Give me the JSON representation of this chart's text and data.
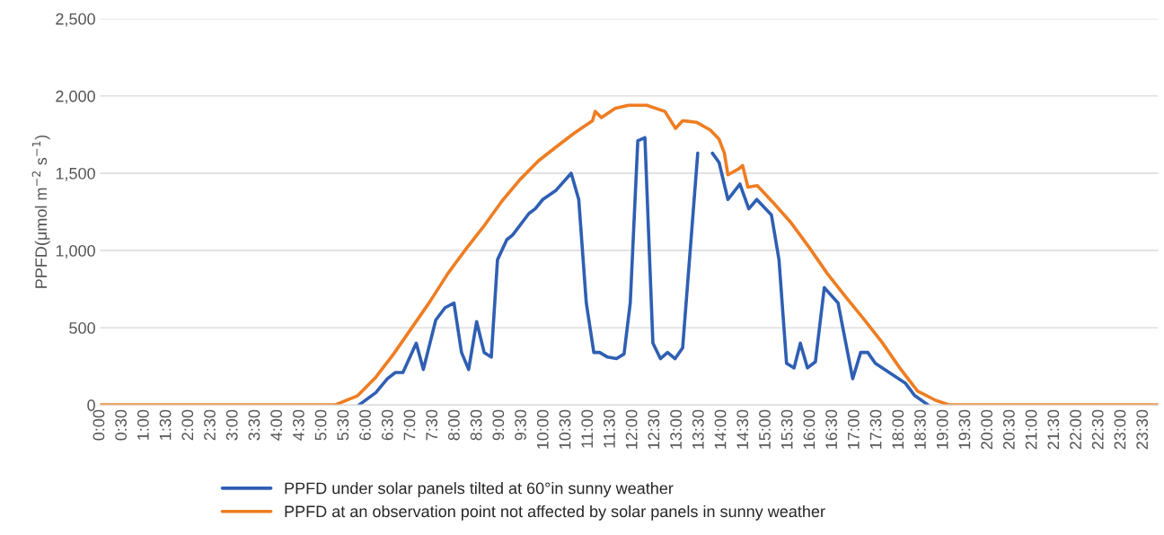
{
  "chart_data": {
    "type": "line",
    "ylabel": "PPFD(μmol m$^{−2}$ s$^{−1}$)",
    "xlim": [
      0,
      23.83
    ],
    "ylim": [
      0,
      2500
    ],
    "yticks": [
      {
        "value": 0,
        "label": "0"
      },
      {
        "value": 500,
        "label": "500"
      },
      {
        "value": 1000,
        "label": "1,000"
      },
      {
        "value": 1500,
        "label": "1,500"
      },
      {
        "value": 2000,
        "label": "2,000"
      },
      {
        "value": 2500,
        "label": "2,500"
      }
    ],
    "xticks": [
      {
        "value": 0,
        "label": "0:00"
      },
      {
        "value": 0.5,
        "label": "0:30"
      },
      {
        "value": 1,
        "label": "1:00"
      },
      {
        "value": 1.5,
        "label": "1:30"
      },
      {
        "value": 2,
        "label": "2:00"
      },
      {
        "value": 2.5,
        "label": "2:30"
      },
      {
        "value": 3,
        "label": "3:00"
      },
      {
        "value": 3.5,
        "label": "3:30"
      },
      {
        "value": 4,
        "label": "4:00"
      },
      {
        "value": 4.5,
        "label": "4:30"
      },
      {
        "value": 5,
        "label": "5:00"
      },
      {
        "value": 5.5,
        "label": "5:30"
      },
      {
        "value": 6,
        "label": "6:00"
      },
      {
        "value": 6.5,
        "label": "6:30"
      },
      {
        "value": 7,
        "label": "7:00"
      },
      {
        "value": 7.5,
        "label": "7:30"
      },
      {
        "value": 8,
        "label": "8:00"
      },
      {
        "value": 8.5,
        "label": "8:30"
      },
      {
        "value": 9,
        "label": "9:00"
      },
      {
        "value": 9.5,
        "label": "9:30"
      },
      {
        "value": 10,
        "label": "10:00"
      },
      {
        "value": 10.5,
        "label": "10:30"
      },
      {
        "value": 11,
        "label": "11:00"
      },
      {
        "value": 11.5,
        "label": "11:30"
      },
      {
        "value": 12,
        "label": "12:00"
      },
      {
        "value": 12.5,
        "label": "12:30"
      },
      {
        "value": 13,
        "label": "13:00"
      },
      {
        "value": 13.5,
        "label": "13:30"
      },
      {
        "value": 14,
        "label": "14:00"
      },
      {
        "value": 14.5,
        "label": "14:30"
      },
      {
        "value": 15,
        "label": "15:00"
      },
      {
        "value": 15.5,
        "label": "15:30"
      },
      {
        "value": 16,
        "label": "16:00"
      },
      {
        "value": 16.5,
        "label": "16:30"
      },
      {
        "value": 17,
        "label": "17:00"
      },
      {
        "value": 17.5,
        "label": "17:30"
      },
      {
        "value": 18,
        "label": "18:00"
      },
      {
        "value": 18.5,
        "label": "18:30"
      },
      {
        "value": 19,
        "label": "19:00"
      },
      {
        "value": 19.5,
        "label": "19:30"
      },
      {
        "value": 20,
        "label": "20:00"
      },
      {
        "value": 20.5,
        "label": "20:30"
      },
      {
        "value": 21,
        "label": "21:00"
      },
      {
        "value": 21.5,
        "label": "21:30"
      },
      {
        "value": 22,
        "label": "22:00"
      },
      {
        "value": 22.5,
        "label": "22:30"
      },
      {
        "value": 23,
        "label": "23:00"
      },
      {
        "value": 23.5,
        "label": "23:30"
      }
    ],
    "grid": "y",
    "legend": "bottom",
    "marker": "none",
    "line_style": "solid",
    "series": [
      {
        "name": "PPFD under solar panels tilted at 60°in sunny weather",
        "color": "#2f5fb3",
        "x": [
          5.83,
          6.21,
          6.47,
          6.65,
          6.82,
          7.12,
          7.28,
          7.56,
          7.77,
          7.97,
          8.14,
          8.3,
          8.48,
          8.65,
          8.81,
          8.95,
          9.16,
          9.29,
          9.66,
          9.8,
          9.97,
          10.27,
          10.61,
          10.78,
          10.95,
          11.12,
          11.25,
          11.43,
          11.63,
          11.8,
          11.94,
          12.11,
          12.27,
          12.45,
          12.62,
          12.78,
          12.95,
          13.12,
          13.46,
          13.63,
          13.79,
          13.94,
          14.14,
          14.41,
          14.61,
          14.79,
          15.12,
          15.29,
          15.46,
          15.63,
          15.77,
          15.93,
          16.11,
          16.31,
          16.62,
          16.95,
          17.13,
          17.29,
          17.46,
          18.14,
          18.35,
          18.65
        ],
        "values": [
          0,
          80,
          170,
          210,
          210,
          400,
          230,
          550,
          630,
          660,
          340,
          230,
          540,
          340,
          310,
          940,
          1070,
          1100,
          1240,
          1270,
          1330,
          1390,
          1500,
          1330,
          660,
          340,
          340,
          310,
          300,
          330,
          660,
          1710,
          1730,
          400,
          300,
          340,
          300,
          370,
          1630,
          null,
          1630,
          1570,
          1330,
          1430,
          1270,
          1330,
          1230,
          940,
          270,
          240,
          400,
          240,
          280,
          760,
          660,
          170,
          340,
          340,
          270,
          140,
          60,
          0
        ]
      },
      {
        "name": "PPFD at an observation point not affected by solar panels in sunny weather",
        "color": "#ee7d22",
        "x": [
          0,
          5.29,
          5.8,
          6.21,
          6.61,
          7.02,
          7.43,
          7.83,
          8.24,
          8.65,
          9.05,
          9.46,
          9.87,
          10.27,
          10.68,
          11.09,
          11.15,
          11.29,
          11.6,
          11.9,
          12.31,
          12.72,
          12.96,
          13.12,
          13.43,
          13.74,
          13.94,
          14.06,
          14.14,
          14.39,
          14.47,
          14.59,
          14.8,
          15.16,
          15.56,
          15.97,
          16.38,
          16.79,
          17.19,
          17.6,
          18.01,
          18.41,
          18.82,
          19.13,
          23.83
        ],
        "values": [
          0,
          0,
          60,
          180,
          330,
          500,
          670,
          850,
          1010,
          1160,
          1320,
          1460,
          1580,
          1670,
          1760,
          1840,
          1900,
          1860,
          1920,
          1940,
          1940,
          1900,
          1790,
          1840,
          1830,
          1780,
          1720,
          1630,
          1490,
          1530,
          1550,
          1410,
          1420,
          1310,
          1180,
          1020,
          850,
          700,
          560,
          410,
          240,
          90,
          30,
          0,
          0
        ]
      }
    ]
  }
}
